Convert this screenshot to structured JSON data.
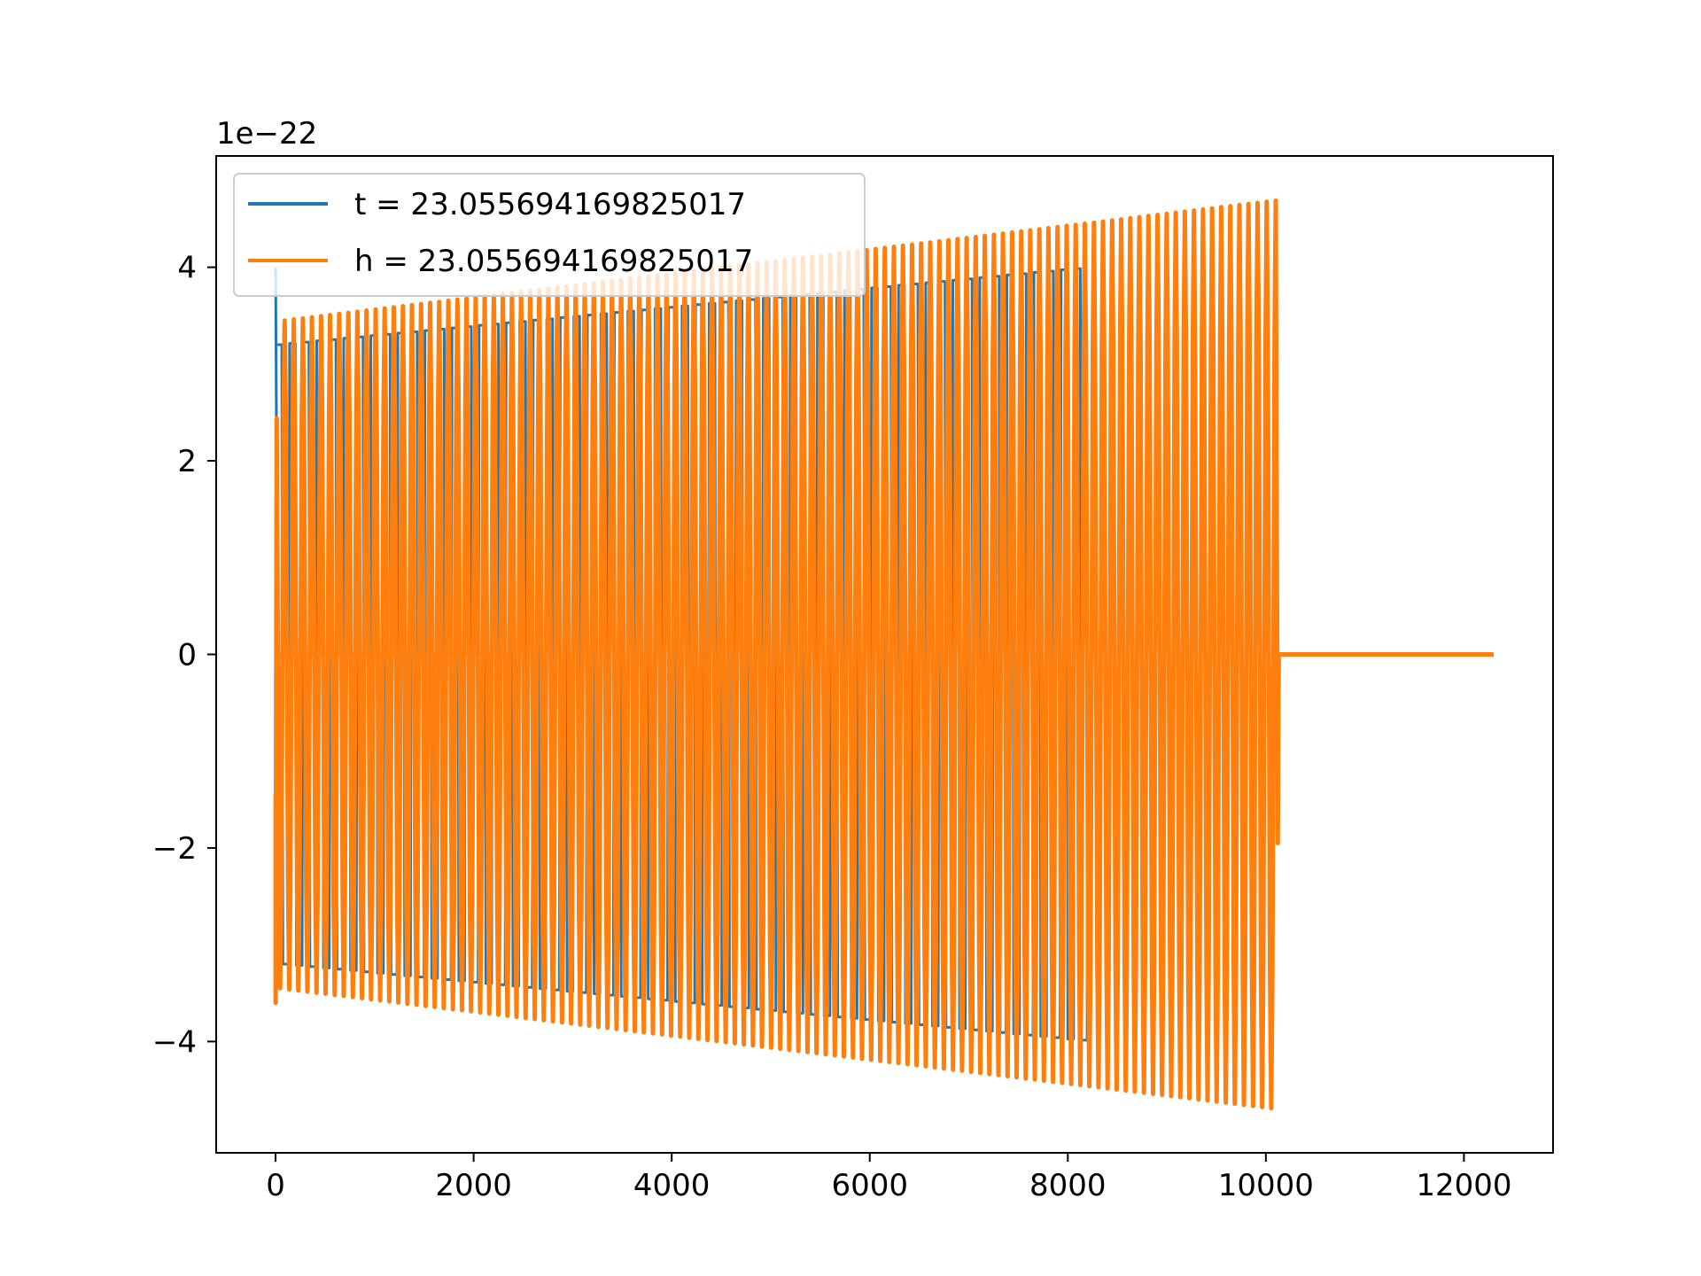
{
  "chart_data": {
    "type": "line",
    "title": "",
    "xlabel": "",
    "ylabel": "",
    "y_offset_text": "1e−22",
    "y_scale_exponent": -22,
    "xlim": [
      -600,
      12900
    ],
    "ylim": [
      -5.15,
      5.15
    ],
    "xticks": [
      0,
      2000,
      4000,
      6000,
      8000,
      10000,
      12000
    ],
    "xtick_labels": [
      "0",
      "2000",
      "4000",
      "6000",
      "8000",
      "10000",
      "12000"
    ],
    "yticks": [
      -4,
      -2,
      0,
      2,
      4
    ],
    "ytick_labels": [
      "−4",
      "−2",
      "0",
      "2",
      "4"
    ],
    "grid": false,
    "legend_position": "top-left",
    "series": [
      {
        "name": "t = 23.055694169825017",
        "color": "#1f77b4",
        "kind": "oscillation",
        "x_range": [
          0,
          8200
        ],
        "envelope_start": 3.2,
        "envelope_end": 4.0,
        "initial_spike": 4.0,
        "cycles": 60,
        "shape": "square-ish"
      },
      {
        "name": "h = 23.055694169825017",
        "color": "#ff7f0e",
        "kind": "oscillation",
        "x_range": [
          0,
          10100
        ],
        "envelope_start": 3.45,
        "envelope_end": 4.7,
        "trough_start": -3.6,
        "cycles": 110,
        "tail_x_end": 12300,
        "tail_value": 0.0,
        "final_dip": -1.95
      }
    ]
  }
}
